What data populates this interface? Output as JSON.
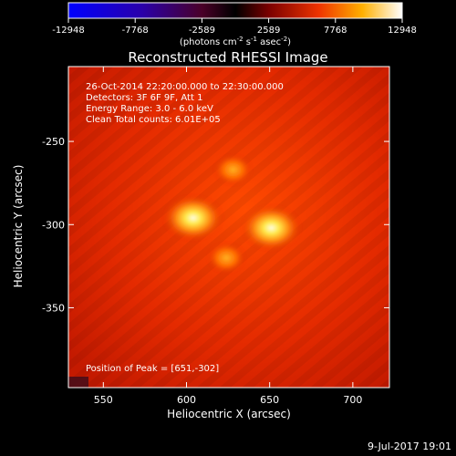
{
  "chart_data": {
    "type": "heatmap",
    "title": "Reconstructed RHESSI Image",
    "colorbar": {
      "ticks": [
        "-12948",
        "-7768",
        "-2589",
        "2589",
        "7768",
        "12948"
      ],
      "label_main": "(photons cm",
      "label_sup1": "-2",
      "label_mid": " s",
      "label_sup2": "-1",
      "label_end": " asec",
      "label_sup3": "-2",
      "label_close": ")",
      "range": [
        -12948,
        12948
      ]
    },
    "annotations": [
      "26-Oct-2014 22:20:00.000 to 22:30:00.000",
      "Detectors: 3F 6F 9F, Att 1",
      "Energy Range: 3.0 - 6.0 keV",
      "Clean    Total counts: 6.01E+05"
    ],
    "peak_note": "Position of Peak = [651,-302]",
    "xlabel": "Heliocentric X (arcsec)",
    "ylabel": "Heliocentric Y (arcsec)",
    "x_ticks": [
      "550",
      "600",
      "650",
      "700"
    ],
    "y_ticks": [
      "-250",
      "-300",
      "-350"
    ],
    "xlim": [
      529,
      722
    ],
    "ylim": [
      -398,
      -205
    ],
    "sources": [
      {
        "x": 651,
        "y": -302,
        "peak": 12948
      },
      {
        "x": 604,
        "y": -296,
        "peak": 12000
      },
      {
        "x": 628,
        "y": -267,
        "peak": 7000
      },
      {
        "x": 624,
        "y": -320,
        "peak": 7200
      }
    ],
    "grid": false
  },
  "footer": {
    "date": "9-Jul-2017 19:01"
  }
}
